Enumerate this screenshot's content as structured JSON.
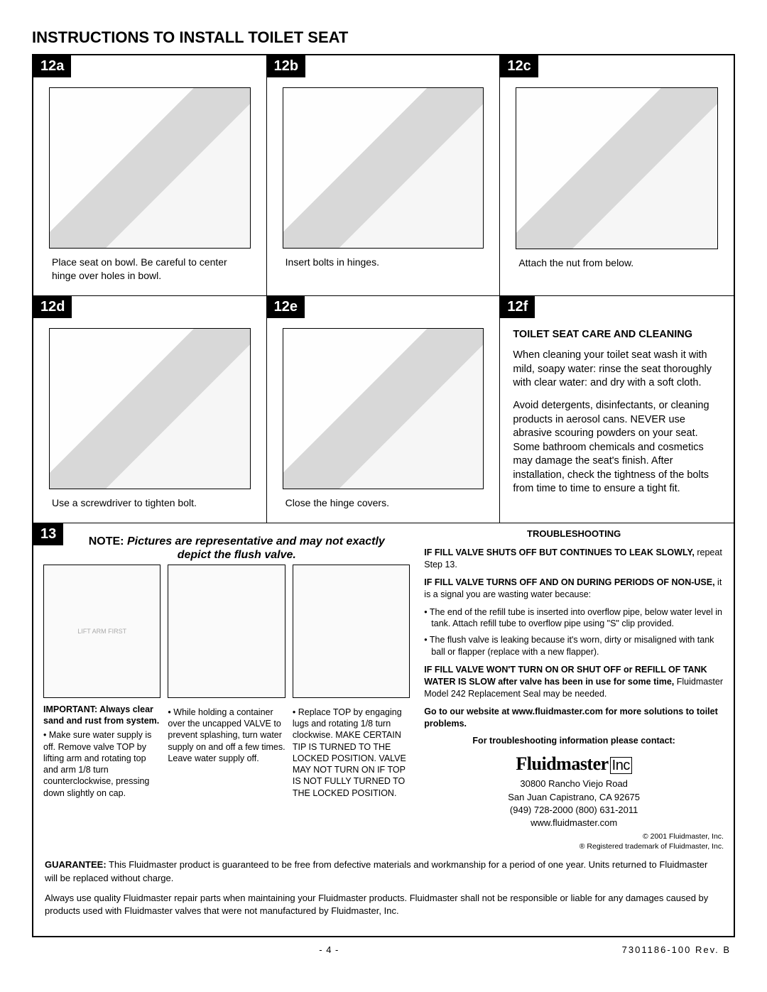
{
  "title": "INSTRUCTIONS TO INSTALL TOILET SEAT",
  "steps": {
    "a": {
      "label": "12a",
      "caption": "Place seat on bowl. Be careful to center hinge over holes in bowl."
    },
    "b": {
      "label": "12b",
      "caption": "Insert bolts in hinges."
    },
    "c": {
      "label": "12c",
      "caption": "Attach the nut from below."
    },
    "d": {
      "label": "12d",
      "caption": "Use a screwdriver to tighten bolt."
    },
    "e": {
      "label": "12e",
      "caption": "Close the hinge covers."
    },
    "f": {
      "label": "12f",
      "heading": "TOILET SEAT CARE AND CLEANING",
      "p1": "When cleaning your toilet seat wash it with mild, soapy water: rinse the seat thoroughly with clear water: and dry with a soft cloth.",
      "p2": "Avoid detergents, disinfectants, or cleaning products in aerosol cans. NEVER use abrasive scouring powders on your seat. Some bathroom chemicals and cosmetics may damage the seat's finish. After installation, check the tightness of the bolts from time to time to ensure a tight fit."
    }
  },
  "s13": {
    "label": "13",
    "note_prefix": "NOTE:",
    "note_text": "Pictures are representative and may not exactly depict the flush valve.",
    "left": {
      "imp": "IMPORTANT: Always clear sand and rust from system.",
      "c1": "Make sure water supply is off. Remove valve TOP by lifting arm and rotating top and arm 1/8 turn counterclockwise, pressing down slightly on cap.",
      "c2": "While holding a container over the uncapped VALVE to prevent splashing, turn water supply on and off a few times. Leave water supply off.",
      "c3": "Replace TOP by engaging lugs and rotating 1/8 turn clockwise. MAKE CERTAIN TIP IS TURNED TO THE LOCKED POSITION. VALVE MAY NOT TURN ON IF TOP IS NOT FULLY TURNED TO THE LOCKED POSITION.",
      "mini_label": "LIFT ARM FIRST"
    },
    "right": {
      "heading": "TROUBLESHOOTING",
      "p1a": "IF FILL VALVE SHUTS OFF BUT CONTINUES TO LEAK SLOWLY,",
      "p1b": " repeat Step 13.",
      "p2a": "IF FILL VALVE TURNS OFF AND ON DURING PERIODS OF NON-USE,",
      "p2b": " it is a signal you are wasting water because:",
      "li1": "The end of the refill tube is inserted into overflow pipe, below water level in tank. Attach refill tube to overflow pipe using \"S\" clip provided.",
      "li2": "The flush valve is leaking because it's worn, dirty or misaligned with tank ball or flapper (replace with a new flapper).",
      "p3a": "IF FILL VALVE WON'T TURN ON OR SHUT OFF or REFILL OF TANK WATER IS SLOW after valve has been in use for some time,",
      "p3b": " Fluidmaster Model 242 Replacement Seal may be needed.",
      "p4": "Go to our website at www.fluidmaster.com for more solutions to toilet problems.",
      "contact_h": "For troubleshooting information please contact:",
      "logo": "Fluidmaster",
      "logo_inc": "Inc",
      "addr1": "30800 Rancho Viejo Road",
      "addr2": "San Juan Capistrano, CA 92675",
      "addr3": "(949) 728-2000  (800) 631-2011",
      "addr4": "www.fluidmaster.com",
      "fine1": "© 2001 Fluidmaster, Inc.",
      "fine2": "® Registered trademark of Fluidmaster, Inc."
    }
  },
  "guarantee": {
    "g1a": "GUARANTEE:",
    "g1b": " This Fluidmaster product is guaranteed to be free from defective materials and workmanship for a period of one year. Units returned to Fluidmaster will be replaced without charge.",
    "g2": "Always use quality Fluidmaster repair parts when maintaining your Fluidmaster products. Fluidmaster shall not be responsible or liable for any damages caused by products used with Fluidmaster valves that were not manufactured by Fluidmaster, Inc."
  },
  "footer": {
    "page": "- 4 -",
    "rev": "7301186-100 Rev. B"
  }
}
